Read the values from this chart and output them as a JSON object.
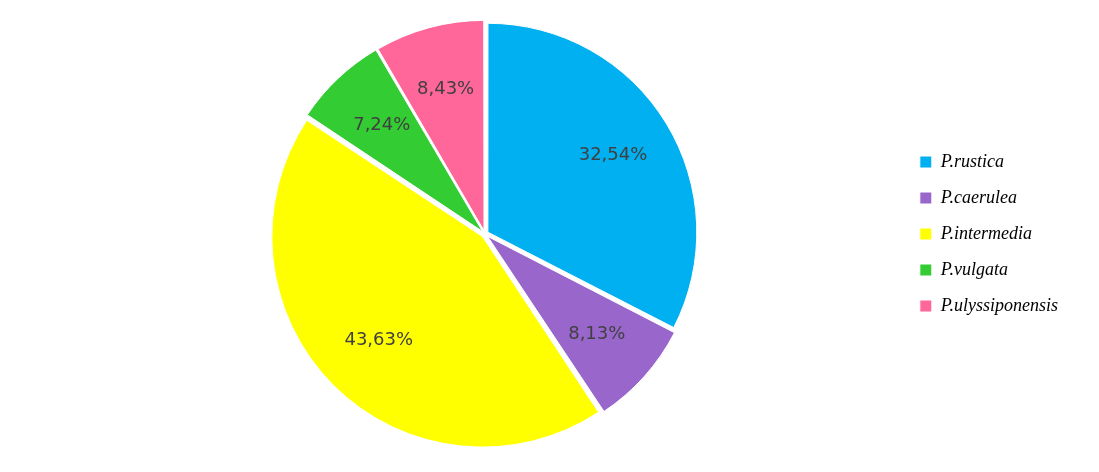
{
  "chart_data": {
    "type": "pie",
    "categories": [
      "P.rustica",
      "P.caerulea",
      "P.intermedia",
      "P.vulgata",
      "P.ulyssiponensis"
    ],
    "values": [
      32.54,
      8.13,
      43.63,
      7.24,
      8.43
    ],
    "colors": [
      "#00b0f0",
      "#9966cc",
      "#ffff00",
      "#33cc33",
      "#ff6699"
    ],
    "value_labels": [
      "32,54%",
      "8,13%",
      "43,63%",
      "7,24%",
      "8,43%"
    ],
    "legend": "right"
  }
}
